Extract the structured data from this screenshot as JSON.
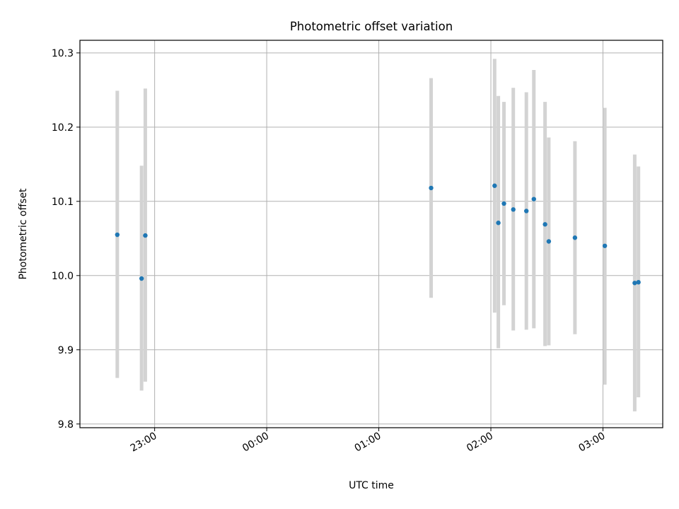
{
  "chart_data": {
    "type": "scatter",
    "title": "Photometric offset variation",
    "xlabel": "UTC time",
    "ylabel": "Photometric offset",
    "x_unit": "UTC time (HH:MM)",
    "xlim": [
      "22:20",
      "03:32"
    ],
    "ylim": [
      9.795,
      10.317
    ],
    "xticks": [
      "23:00",
      "00:00",
      "01:00",
      "02:00",
      "03:00"
    ],
    "yticks": [
      9.8,
      9.9,
      10.0,
      10.1,
      10.2,
      10.3
    ],
    "grid": true,
    "legend": "none",
    "colors": {
      "points": "#1f77b4",
      "errorbars": "#d3d3d3",
      "grid": "#b0b0b0"
    },
    "points": [
      {
        "x": "22:40",
        "y": 10.055,
        "ylow": 9.862,
        "yhigh": 10.249
      },
      {
        "x": "22:53",
        "y": 9.996,
        "ylow": 9.845,
        "yhigh": 10.148
      },
      {
        "x": "22:55",
        "y": 10.054,
        "ylow": 9.857,
        "yhigh": 10.252
      },
      {
        "x": "01:28",
        "y": 10.118,
        "ylow": 9.97,
        "yhigh": 10.266
      },
      {
        "x": "02:02",
        "y": 10.121,
        "ylow": 9.95,
        "yhigh": 10.292
      },
      {
        "x": "02:04",
        "y": 10.071,
        "ylow": 9.902,
        "yhigh": 10.242
      },
      {
        "x": "02:07",
        "y": 10.097,
        "ylow": 9.96,
        "yhigh": 10.234
      },
      {
        "x": "02:12",
        "y": 10.089,
        "ylow": 9.926,
        "yhigh": 10.253
      },
      {
        "x": "02:19",
        "y": 10.087,
        "ylow": 9.927,
        "yhigh": 10.247
      },
      {
        "x": "02:23",
        "y": 10.103,
        "ylow": 9.929,
        "yhigh": 10.277
      },
      {
        "x": "02:29",
        "y": 10.069,
        "ylow": 9.905,
        "yhigh": 10.234
      },
      {
        "x": "02:31",
        "y": 10.046,
        "ylow": 9.906,
        "yhigh": 10.186
      },
      {
        "x": "02:45",
        "y": 10.051,
        "ylow": 9.921,
        "yhigh": 10.181
      },
      {
        "x": "03:01",
        "y": 10.04,
        "ylow": 9.853,
        "yhigh": 10.226
      },
      {
        "x": "03:17",
        "y": 9.99,
        "ylow": 9.817,
        "yhigh": 10.163
      },
      {
        "x": "03:19",
        "y": 9.991,
        "ylow": 9.836,
        "yhigh": 10.147
      }
    ]
  }
}
